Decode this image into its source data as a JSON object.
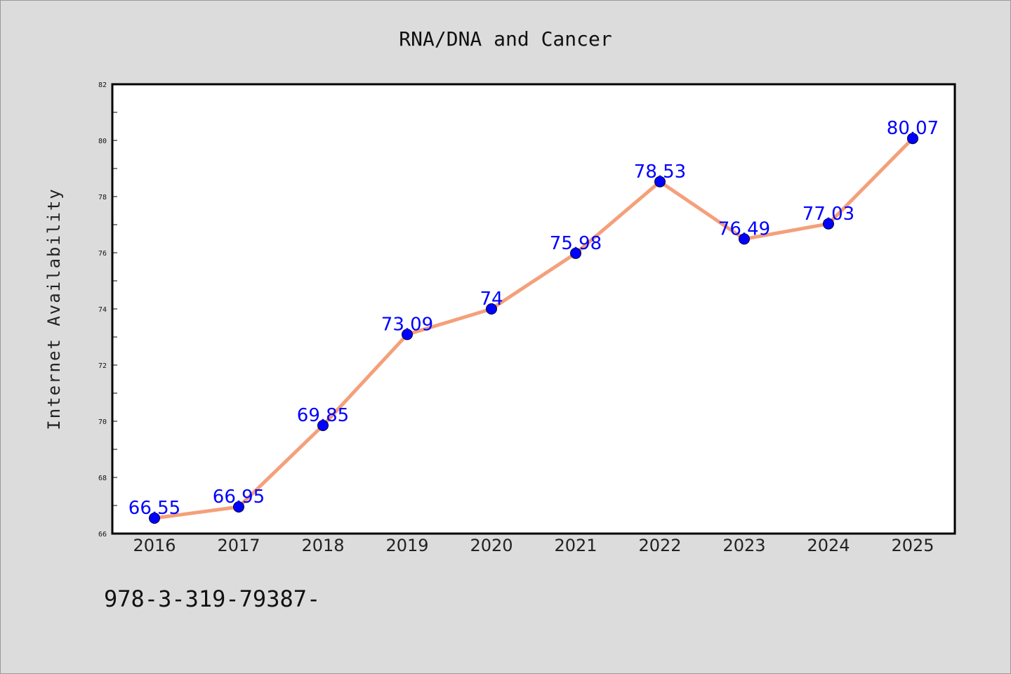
{
  "chart_data": {
    "type": "line",
    "title": "RNA/DNA and Cancer",
    "xlabel": "",
    "ylabel": "Internet Availability",
    "categories": [
      "2016",
      "2017",
      "2018",
      "2019",
      "2020",
      "2021",
      "2022",
      "2023",
      "2024",
      "2025"
    ],
    "series": [
      {
        "values": [
          66.55,
          66.95,
          69.85,
          73.09,
          74,
          75.98,
          78.53,
          76.49,
          77.03,
          80.07
        ],
        "labels": [
          "66.55",
          "66.95",
          "69.85",
          "73.09",
          "74",
          "75.98",
          "78.53",
          "76.49",
          "77.03",
          "80.07"
        ]
      }
    ],
    "ylim": [
      66,
      82
    ],
    "yticks": [
      66,
      68,
      70,
      72,
      74,
      76,
      78,
      80,
      82
    ],
    "grid": false,
    "legend": "none",
    "colors": {
      "line": "#f4a07a",
      "marker": "#0000ff",
      "data_label": "#0000ff",
      "background": "#dcdcdc",
      "plot_background": "#ffffff"
    }
  },
  "footer_text": "978-3-319-79387-"
}
